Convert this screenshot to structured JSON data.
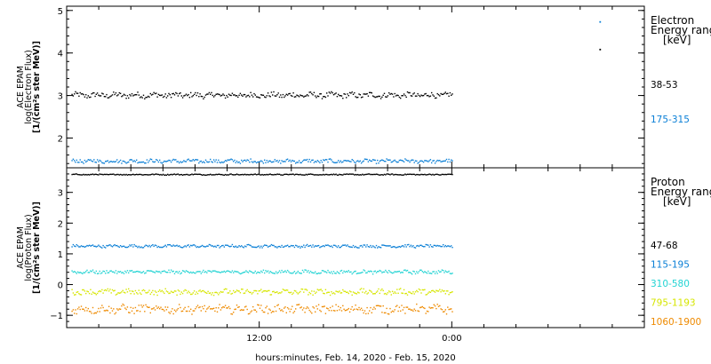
{
  "x_title": "hours:minutes, Feb. 14, 2020 - Feb. 15, 2020",
  "x_tick_labels": [
    "12:00",
    "0:00"
  ],
  "chart_data": [
    {
      "type": "scatter",
      "ylabel": [
        "ACE EPAM",
        "log(Electron Flux)",
        "[1/(cm²s ster MeV)]"
      ],
      "ylim": [
        1.3,
        5.1
      ],
      "yticks": [
        2,
        3,
        4,
        5
      ],
      "x_hours_range": [
        -12,
        24
      ],
      "legend": {
        "title": [
          "Electron",
          "Energy range",
          "[keV]"
        ],
        "entries": [
          "38-53",
          "175-315"
        ]
      },
      "series": [
        {
          "name": "38-53",
          "color": "#000000",
          "mean": 3.02,
          "jitter": 0.06,
          "outliers": [
            {
              "x": 21.2,
              "y": 4.1
            }
          ]
        },
        {
          "name": "175-315",
          "color": "#0a7fd6",
          "mean": 1.47,
          "jitter": 0.04,
          "outliers": [
            {
              "x": 21.2,
              "y": 4.75
            }
          ]
        }
      ]
    },
    {
      "type": "scatter",
      "ylabel": [
        "ACE EPAM",
        "log(Proton Flux)",
        "[1/(cm²s ster MeV)]"
      ],
      "ylim": [
        -1.4,
        3.8
      ],
      "yticks": [
        -1,
        0,
        1,
        2,
        3
      ],
      "x_hours_range": [
        -12,
        24
      ],
      "legend": {
        "title": [
          "Proton",
          "Energy range",
          "[keV]"
        ],
        "entries": [
          "47-68",
          "115-195",
          "310-580",
          "795-1193",
          "1060-1900"
        ]
      },
      "series": [
        {
          "name": "47-68",
          "color": "#000000",
          "mean": 3.6,
          "jitter": 0.015
        },
        {
          "name": "115-195",
          "color": "#0a7fd6",
          "mean": 1.27,
          "jitter": 0.04
        },
        {
          "name": "310-580",
          "color": "#22d3d3",
          "mean": 0.43,
          "jitter": 0.05
        },
        {
          "name": "795-1193",
          "color": "#d6e600",
          "mean": -0.22,
          "jitter": 0.08
        },
        {
          "name": "1060-1900",
          "color": "#ee8a00",
          "mean": -0.78,
          "jitter": 0.12
        }
      ]
    }
  ]
}
